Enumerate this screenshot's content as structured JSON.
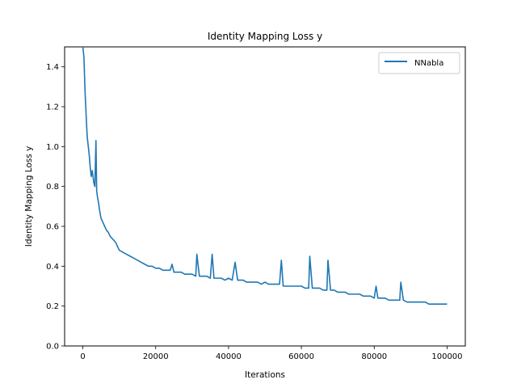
{
  "chart_data": {
    "type": "line",
    "title": "Identity Mapping Loss y",
    "xlabel": "Iterations",
    "ylabel": "Identity Mapping Loss y",
    "xlim": [
      -5000,
      105000
    ],
    "ylim": [
      0.0,
      1.5
    ],
    "x_ticks": [
      0,
      20000,
      40000,
      60000,
      80000,
      100000
    ],
    "x_tick_labels": [
      "0",
      "20000",
      "40000",
      "60000",
      "80000",
      "100000"
    ],
    "y_ticks": [
      0.0,
      0.2,
      0.4,
      0.6,
      0.8,
      1.0,
      1.2,
      1.4
    ],
    "y_tick_labels": [
      "0.0",
      "0.2",
      "0.4",
      "0.6",
      "0.8",
      "1.0",
      "1.2",
      "1.4"
    ],
    "grid": false,
    "legend_position": "top-right",
    "series": [
      {
        "name": "NNabla",
        "color": "#1f77b4",
        "x": [
          0,
          300,
          600,
          800,
          1000,
          1200,
          1500,
          1800,
          2000,
          2300,
          2600,
          3000,
          3300,
          3600,
          3800,
          4000,
          4300,
          4600,
          5000,
          5500,
          6000,
          6500,
          7000,
          7500,
          8000,
          8500,
          9000,
          9500,
          10000,
          11000,
          12000,
          13000,
          14000,
          15000,
          16000,
          17000,
          18000,
          19000,
          20000,
          21000,
          22000,
          23000,
          24000,
          24500,
          25000,
          26000,
          27000,
          28000,
          29000,
          30000,
          31000,
          31300,
          32000,
          33000,
          34000,
          35000,
          35500,
          36000,
          37000,
          38000,
          39000,
          40000,
          41000,
          41800,
          42500,
          44000,
          45000,
          46000,
          47000,
          48000,
          49000,
          50000,
          51000,
          52000,
          53000,
          54000,
          54500,
          55000,
          56000,
          57000,
          58000,
          59000,
          60000,
          61000,
          62000,
          62300,
          63000,
          64000,
          65000,
          66000,
          67000,
          67300,
          68000,
          69000,
          70000,
          71000,
          72000,
          73000,
          74000,
          75000,
          76000,
          77000,
          78000,
          79000,
          80000,
          80500,
          81000,
          82000,
          83000,
          84000,
          85000,
          86000,
          87000,
          87300,
          88000,
          89000,
          90000,
          91000,
          92000,
          93000,
          94000,
          95000,
          96000,
          97000,
          98000,
          99000,
          100000
        ],
        "values": [
          1.5,
          1.45,
          1.28,
          1.2,
          1.12,
          1.05,
          1.0,
          0.95,
          0.9,
          0.85,
          0.88,
          0.82,
          0.8,
          1.03,
          0.78,
          0.75,
          0.72,
          0.68,
          0.64,
          0.62,
          0.6,
          0.58,
          0.57,
          0.55,
          0.54,
          0.53,
          0.52,
          0.5,
          0.48,
          0.47,
          0.46,
          0.45,
          0.44,
          0.43,
          0.42,
          0.41,
          0.4,
          0.4,
          0.39,
          0.39,
          0.38,
          0.38,
          0.38,
          0.41,
          0.37,
          0.37,
          0.37,
          0.36,
          0.36,
          0.36,
          0.35,
          0.46,
          0.35,
          0.35,
          0.35,
          0.34,
          0.46,
          0.34,
          0.34,
          0.34,
          0.33,
          0.34,
          0.33,
          0.42,
          0.33,
          0.33,
          0.32,
          0.32,
          0.32,
          0.32,
          0.31,
          0.32,
          0.31,
          0.31,
          0.31,
          0.31,
          0.43,
          0.3,
          0.3,
          0.3,
          0.3,
          0.3,
          0.3,
          0.29,
          0.29,
          0.45,
          0.29,
          0.29,
          0.29,
          0.28,
          0.28,
          0.43,
          0.28,
          0.28,
          0.27,
          0.27,
          0.27,
          0.26,
          0.26,
          0.26,
          0.26,
          0.25,
          0.25,
          0.25,
          0.24,
          0.3,
          0.24,
          0.24,
          0.24,
          0.23,
          0.23,
          0.23,
          0.23,
          0.32,
          0.23,
          0.22,
          0.22,
          0.22,
          0.22,
          0.22,
          0.22,
          0.21,
          0.21,
          0.21,
          0.21,
          0.21,
          0.21
        ]
      }
    ]
  }
}
